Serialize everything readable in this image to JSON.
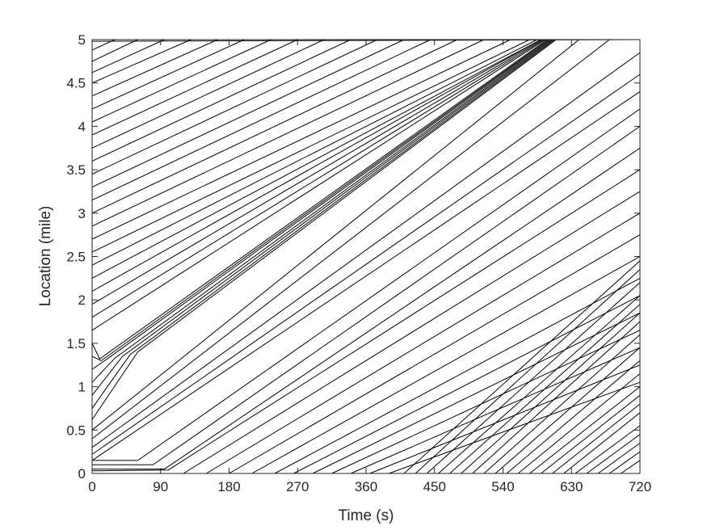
{
  "chart_data": {
    "type": "line",
    "title": "",
    "xlabel": "Time (s)",
    "ylabel": "Location (mile)",
    "xlim": [
      0,
      720
    ],
    "ylim": [
      0,
      5
    ],
    "xticks": [
      "0",
      "90",
      "180",
      "270",
      "360",
      "450",
      "540",
      "630",
      "720"
    ],
    "yticks": [
      "0",
      "0.5",
      "1",
      "1.5",
      "2",
      "2.5",
      "3",
      "3.5",
      "4",
      "4.5",
      "5"
    ],
    "grid": false,
    "legend": "none",
    "line_color": "#000000",
    "series_note_free": true,
    "bottleneck_band": {
      "location_mi": 1.3,
      "start_time_s": 10,
      "end_time_s": 590,
      "end_location_mi": 5.0
    },
    "series": [
      {
        "x": [
          0,
          720
        ],
        "y": [
          4.98,
          5.0
        ]
      },
      {
        "x": [
          0,
          30
        ],
        "y": [
          4.88,
          5.0
        ]
      },
      {
        "x": [
          0,
          60
        ],
        "y": [
          4.75,
          5.0
        ]
      },
      {
        "x": [
          0,
          95
        ],
        "y": [
          4.62,
          5.0
        ]
      },
      {
        "x": [
          0,
          130
        ],
        "y": [
          4.5,
          5.0
        ]
      },
      {
        "x": [
          0,
          165
        ],
        "y": [
          4.35,
          5.0
        ]
      },
      {
        "x": [
          0,
          200
        ],
        "y": [
          4.2,
          5.0
        ]
      },
      {
        "x": [
          0,
          235
        ],
        "y": [
          4.05,
          5.0
        ]
      },
      {
        "x": [
          0,
          270
        ],
        "y": [
          3.9,
          5.0
        ]
      },
      {
        "x": [
          0,
          305
        ],
        "y": [
          3.75,
          5.0
        ]
      },
      {
        "x": [
          0,
          340
        ],
        "y": [
          3.6,
          5.0
        ]
      },
      {
        "x": [
          0,
          375
        ],
        "y": [
          3.45,
          5.0
        ]
      },
      {
        "x": [
          0,
          410
        ],
        "y": [
          3.3,
          5.0
        ]
      },
      {
        "x": [
          0,
          445
        ],
        "y": [
          3.15,
          5.0
        ]
      },
      {
        "x": [
          0,
          480
        ],
        "y": [
          3.0,
          5.0
        ]
      },
      {
        "x": [
          0,
          515
        ],
        "y": [
          2.85,
          5.0
        ]
      },
      {
        "x": [
          0,
          550
        ],
        "y": [
          2.7,
          5.0
        ]
      },
      {
        "x": [
          0,
          575
        ],
        "y": [
          2.55,
          5.0
        ]
      },
      {
        "x": [
          0,
          585
        ],
        "y": [
          2.4,
          5.0
        ]
      },
      {
        "x": [
          0,
          590
        ],
        "y": [
          2.25,
          5.0
        ]
      },
      {
        "x": [
          0,
          590
        ],
        "y": [
          2.1,
          5.0
        ]
      },
      {
        "x": [
          0,
          592
        ],
        "y": [
          1.95,
          5.0
        ]
      },
      {
        "x": [
          0,
          594
        ],
        "y": [
          1.8,
          5.0
        ]
      },
      {
        "x": [
          0,
          596
        ],
        "y": [
          1.65,
          5.0
        ]
      },
      {
        "x": [
          0,
          10,
          598
        ],
        "y": [
          1.5,
          1.32,
          5.0
        ]
      },
      {
        "x": [
          0,
          12,
          600
        ],
        "y": [
          1.35,
          1.3,
          5.0
        ]
      },
      {
        "x": [
          0,
          20,
          602
        ],
        "y": [
          1.2,
          1.32,
          5.0
        ]
      },
      {
        "x": [
          0,
          30,
          604
        ],
        "y": [
          1.05,
          1.33,
          5.0
        ]
      },
      {
        "x": [
          0,
          40,
          606
        ],
        "y": [
          0.9,
          1.35,
          5.0
        ]
      },
      {
        "x": [
          0,
          50,
          608
        ],
        "y": [
          0.75,
          1.37,
          5.0
        ]
      },
      {
        "x": [
          0,
          60,
          610
        ],
        "y": [
          0.62,
          1.4,
          5.0
        ]
      },
      {
        "x": [
          0,
          640
        ],
        "y": [
          0.5,
          5.0
        ]
      },
      {
        "x": [
          0,
          680
        ],
        "y": [
          0.4,
          5.0
        ]
      },
      {
        "x": [
          0,
          720
        ],
        "y": [
          0.3,
          4.85
        ]
      },
      {
        "x": [
          0,
          720
        ],
        "y": [
          0.22,
          4.6
        ]
      },
      {
        "x": [
          0,
          720
        ],
        "y": [
          0.15,
          4.4
        ]
      },
      {
        "x": [
          0,
          60,
          720
        ],
        "y": [
          0.15,
          0.15,
          4.2
        ]
      },
      {
        "x": [
          0,
          80,
          720
        ],
        "y": [
          0.1,
          0.1,
          4.0
        ]
      },
      {
        "x": [
          0,
          95,
          720
        ],
        "y": [
          0.05,
          0.05,
          3.75
        ]
      },
      {
        "x": [
          0,
          100,
          720
        ],
        "y": [
          0.03,
          0.04,
          3.5
        ]
      },
      {
        "x": [
          120,
          720
        ],
        "y": [
          0.0,
          3.25
        ]
      },
      {
        "x": [
          150,
          720
        ],
        "y": [
          0.0,
          3.0
        ]
      },
      {
        "x": [
          180,
          720
        ],
        "y": [
          0.0,
          2.75
        ]
      },
      {
        "x": [
          210,
          720
        ],
        "y": [
          0.0,
          2.5
        ]
      },
      {
        "x": [
          240,
          720
        ],
        "y": [
          0.0,
          2.25
        ]
      },
      {
        "x": [
          265,
          720
        ],
        "y": [
          0.0,
          2.05
        ]
      },
      {
        "x": [
          290,
          720
        ],
        "y": [
          0.0,
          1.85
        ]
      },
      {
        "x": [
          315,
          720
        ],
        "y": [
          0.0,
          1.65
        ]
      },
      {
        "x": [
          340,
          720
        ],
        "y": [
          0.0,
          1.45
        ]
      },
      {
        "x": [
          365,
          720
        ],
        "y": [
          0.0,
          1.25
        ]
      },
      {
        "x": [
          390,
          720
        ],
        "y": [
          0.0,
          1.05
        ]
      },
      {
        "x": [
          410,
          720
        ],
        "y": [
          0.0,
          2.45
        ]
      },
      {
        "x": [
          425,
          720
        ],
        "y": [
          0.0,
          2.35
        ]
      },
      {
        "x": [
          440,
          720
        ],
        "y": [
          0.0,
          2.2
        ]
      },
      {
        "x": [
          455,
          720
        ],
        "y": [
          0.0,
          2.05
        ]
      },
      {
        "x": [
          470,
          720
        ],
        "y": [
          0.0,
          1.95
        ]
      },
      {
        "x": [
          485,
          720
        ],
        "y": [
          0.0,
          1.85
        ]
      },
      {
        "x": [
          500,
          720
        ],
        "y": [
          0.0,
          1.75
        ]
      },
      {
        "x": [
          515,
          720
        ],
        "y": [
          0.0,
          1.6
        ]
      },
      {
        "x": [
          530,
          720
        ],
        "y": [
          0.0,
          1.45
        ]
      },
      {
        "x": [
          545,
          720
        ],
        "y": [
          0.0,
          1.3
        ]
      },
      {
        "x": [
          560,
          720
        ],
        "y": [
          0.0,
          1.15
        ]
      },
      {
        "x": [
          575,
          720
        ],
        "y": [
          0.0,
          1.0
        ]
      },
      {
        "x": [
          590,
          720
        ],
        "y": [
          0.0,
          0.9
        ]
      },
      {
        "x": [
          605,
          720
        ],
        "y": [
          0.0,
          0.8
        ]
      },
      {
        "x": [
          620,
          720
        ],
        "y": [
          0.0,
          0.7
        ]
      },
      {
        "x": [
          635,
          720
        ],
        "y": [
          0.0,
          0.55
        ]
      },
      {
        "x": [
          650,
          720
        ],
        "y": [
          0.0,
          0.45
        ]
      },
      {
        "x": [
          665,
          720
        ],
        "y": [
          0.0,
          0.35
        ]
      },
      {
        "x": [
          680,
          720
        ],
        "y": [
          0.0,
          0.25
        ]
      },
      {
        "x": [
          695,
          720
        ],
        "y": [
          0.0,
          0.15
        ]
      }
    ]
  }
}
